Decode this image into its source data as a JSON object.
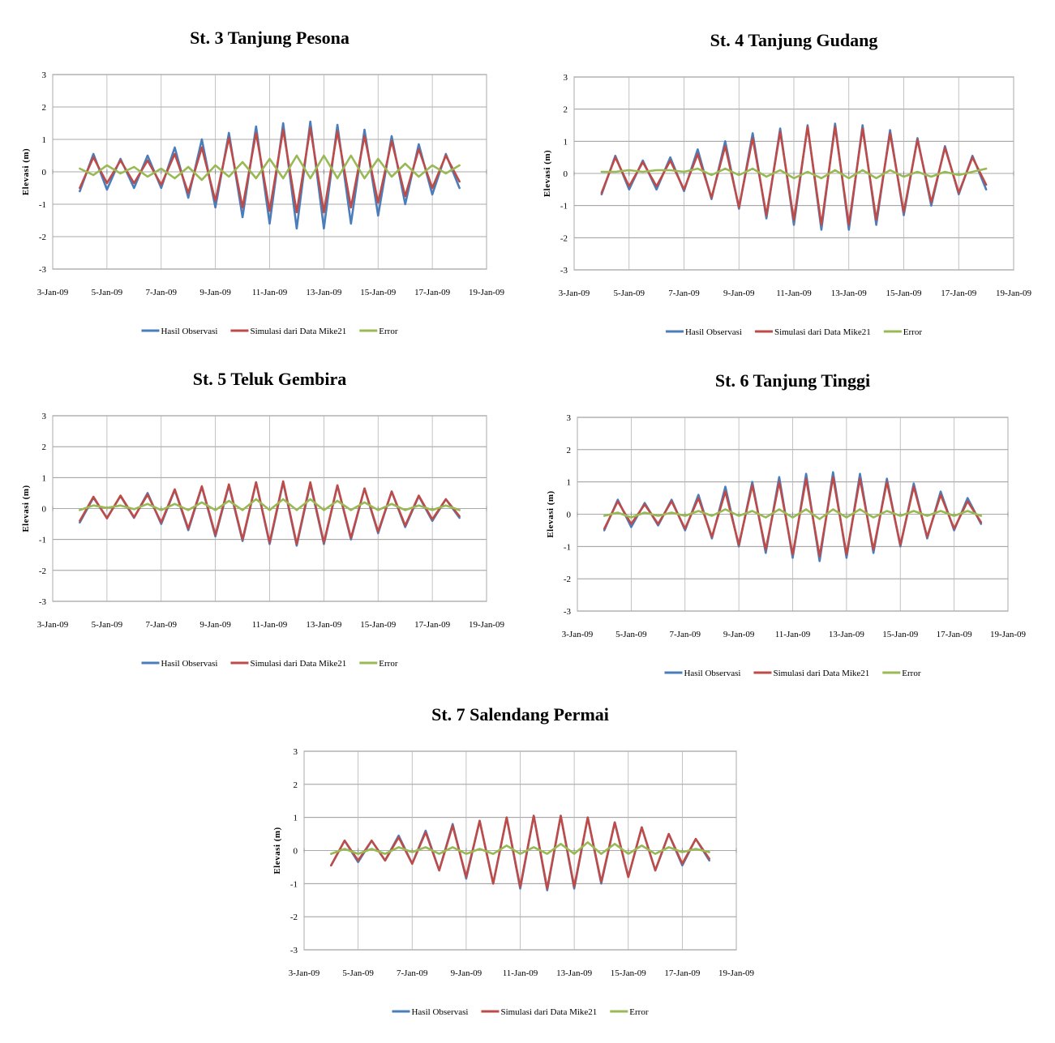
{
  "chart_data": [
    {
      "type": "line",
      "title": "St. 3 Tanjung Pesona",
      "y_label": "Elevasi (m)",
      "grid": true,
      "legend": "bottom",
      "x": [
        "2009-01-04T00:00",
        "2009-01-04T12:00",
        "2009-01-05T00:00",
        "2009-01-05T12:00",
        "2009-01-06T00:00",
        "2009-01-06T12:00",
        "2009-01-07T00:00",
        "2009-01-07T12:00",
        "2009-01-08T00:00",
        "2009-01-08T12:00",
        "2009-01-09T00:00",
        "2009-01-09T12:00",
        "2009-01-10T00:00",
        "2009-01-10T12:00",
        "2009-01-11T00:00",
        "2009-01-11T12:00",
        "2009-01-12T00:00",
        "2009-01-12T12:00",
        "2009-01-13T00:00",
        "2009-01-13T12:00",
        "2009-01-14T00:00",
        "2009-01-14T12:00",
        "2009-01-15T00:00",
        "2009-01-15T12:00",
        "2009-01-16T00:00",
        "2009-01-16T12:00",
        "2009-01-17T00:00",
        "2009-01-17T12:00",
        "2009-01-18T00:00"
      ],
      "xlim": [
        "2009-01-03",
        "2009-01-19"
      ],
      "xticks": [
        {
          "value": "2009-01-03",
          "label": "3-Jan-09"
        },
        {
          "value": "2009-01-05",
          "label": "5-Jan-09"
        },
        {
          "value": "2009-01-07",
          "label": "7-Jan-09"
        },
        {
          "value": "2009-01-09",
          "label": "9-Jan-09"
        },
        {
          "value": "2009-01-11",
          "label": "11-Jan-09"
        },
        {
          "value": "2009-01-13",
          "label": "13-Jan-09"
        },
        {
          "value": "2009-01-15",
          "label": "15-Jan-09"
        },
        {
          "value": "2009-01-17",
          "label": "17-Jan-09"
        },
        {
          "value": "2009-01-19",
          "label": "19-Jan-09"
        }
      ],
      "ylim": [
        -3,
        3
      ],
      "yticks": [
        -3,
        -2,
        -1,
        0,
        1,
        2,
        3
      ],
      "series": [
        {
          "name": "Hasil Observasi",
          "color": "#4a7ebb",
          "values": [
            -0.6,
            0.55,
            -0.55,
            0.4,
            -0.5,
            0.5,
            -0.5,
            0.75,
            -0.8,
            1.0,
            -1.1,
            1.2,
            -1.4,
            1.4,
            -1.6,
            1.5,
            -1.75,
            1.55,
            -1.75,
            1.45,
            -1.6,
            1.3,
            -1.35,
            1.1,
            -1.0,
            0.85,
            -0.7,
            0.55,
            -0.5
          ]
        },
        {
          "name": "Simulasi dari Data Mike21",
          "color": "#be4b48",
          "values": [
            -0.5,
            0.45,
            -0.35,
            0.35,
            -0.35,
            0.35,
            -0.4,
            0.55,
            -0.65,
            0.75,
            -0.9,
            1.05,
            -1.1,
            1.2,
            -1.2,
            1.3,
            -1.25,
            1.35,
            -1.25,
            1.25,
            -1.1,
            1.1,
            -0.95,
            0.95,
            -0.75,
            0.7,
            -0.5,
            0.5,
            -0.3
          ]
        },
        {
          "name": "Error",
          "color": "#98b954",
          "values": [
            0.1,
            -0.1,
            0.2,
            -0.05,
            0.15,
            -0.15,
            0.1,
            -0.2,
            0.15,
            -0.25,
            0.2,
            -0.15,
            0.3,
            -0.2,
            0.4,
            -0.2,
            0.5,
            -0.2,
            0.5,
            -0.2,
            0.5,
            -0.2,
            0.4,
            -0.15,
            0.25,
            -0.15,
            0.2,
            -0.05,
            0.2
          ]
        }
      ]
    },
    {
      "type": "line",
      "title": "St. 4 Tanjung Gudang",
      "y_label": "Elevasi (m)",
      "grid": true,
      "legend": "bottom",
      "x": [
        "2009-01-04T00:00",
        "2009-01-04T12:00",
        "2009-01-05T00:00",
        "2009-01-05T12:00",
        "2009-01-06T00:00",
        "2009-01-06T12:00",
        "2009-01-07T00:00",
        "2009-01-07T12:00",
        "2009-01-08T00:00",
        "2009-01-08T12:00",
        "2009-01-09T00:00",
        "2009-01-09T12:00",
        "2009-01-10T00:00",
        "2009-01-10T12:00",
        "2009-01-11T00:00",
        "2009-01-11T12:00",
        "2009-01-12T00:00",
        "2009-01-12T12:00",
        "2009-01-13T00:00",
        "2009-01-13T12:00",
        "2009-01-14T00:00",
        "2009-01-14T12:00",
        "2009-01-15T00:00",
        "2009-01-15T12:00",
        "2009-01-16T00:00",
        "2009-01-16T12:00",
        "2009-01-17T00:00",
        "2009-01-17T12:00",
        "2009-01-18T00:00"
      ],
      "xlim": [
        "2009-01-03",
        "2009-01-19"
      ],
      "xticks": [
        {
          "value": "2009-01-03",
          "label": "3-Jan-09"
        },
        {
          "value": "2009-01-05",
          "label": "5-Jan-09"
        },
        {
          "value": "2009-01-07",
          "label": "7-Jan-09"
        },
        {
          "value": "2009-01-09",
          "label": "9-Jan-09"
        },
        {
          "value": "2009-01-11",
          "label": "11-Jan-09"
        },
        {
          "value": "2009-01-13",
          "label": "13-Jan-09"
        },
        {
          "value": "2009-01-15",
          "label": "15-Jan-09"
        },
        {
          "value": "2009-01-17",
          "label": "17-Jan-09"
        },
        {
          "value": "2009-01-19",
          "label": "19-Jan-09"
        }
      ],
      "ylim": [
        -3,
        3
      ],
      "yticks": [
        -3,
        -2,
        -1,
        0,
        1,
        2,
        3
      ],
      "series": [
        {
          "name": "Hasil Observasi",
          "color": "#4a7ebb",
          "values": [
            -0.65,
            0.55,
            -0.5,
            0.4,
            -0.5,
            0.5,
            -0.55,
            0.75,
            -0.8,
            1.0,
            -1.1,
            1.25,
            -1.4,
            1.4,
            -1.6,
            1.5,
            -1.75,
            1.55,
            -1.75,
            1.5,
            -1.6,
            1.35,
            -1.3,
            1.1,
            -1.0,
            0.85,
            -0.65,
            0.55,
            -0.5
          ]
        },
        {
          "name": "Simulasi dari Data Mike21",
          "color": "#be4b48",
          "values": [
            -0.6,
            0.5,
            -0.4,
            0.35,
            -0.4,
            0.4,
            -0.5,
            0.6,
            -0.75,
            0.85,
            -1.05,
            1.1,
            -1.3,
            1.3,
            -1.45,
            1.45,
            -1.6,
            1.45,
            -1.6,
            1.4,
            -1.45,
            1.25,
            -1.2,
            1.05,
            -0.9,
            0.8,
            -0.6,
            0.5,
            -0.35
          ]
        },
        {
          "name": "Error",
          "color": "#98b954",
          "values": [
            0.05,
            0.05,
            0.1,
            0.05,
            0.1,
            0.1,
            0.05,
            0.15,
            -0.05,
            0.15,
            -0.05,
            0.15,
            -0.1,
            0.1,
            -0.15,
            0.05,
            -0.15,
            0.1,
            -0.15,
            0.1,
            -0.15,
            0.1,
            -0.1,
            0.05,
            -0.1,
            0.05,
            -0.05,
            0.05,
            0.15
          ]
        }
      ]
    },
    {
      "type": "line",
      "title": "St. 5 Teluk Gembira",
      "y_label": "Elevasi (m)",
      "grid": true,
      "legend": "bottom",
      "x": [
        "2009-01-04T00:00",
        "2009-01-04T12:00",
        "2009-01-05T00:00",
        "2009-01-05T12:00",
        "2009-01-06T00:00",
        "2009-01-06T12:00",
        "2009-01-07T00:00",
        "2009-01-07T12:00",
        "2009-01-08T00:00",
        "2009-01-08T12:00",
        "2009-01-09T00:00",
        "2009-01-09T12:00",
        "2009-01-10T00:00",
        "2009-01-10T12:00",
        "2009-01-11T00:00",
        "2009-01-11T12:00",
        "2009-01-12T00:00",
        "2009-01-12T12:00",
        "2009-01-13T00:00",
        "2009-01-13T12:00",
        "2009-01-14T00:00",
        "2009-01-14T12:00",
        "2009-01-15T00:00",
        "2009-01-15T12:00",
        "2009-01-16T00:00",
        "2009-01-16T12:00",
        "2009-01-17T00:00",
        "2009-01-17T12:00",
        "2009-01-18T00:00"
      ],
      "xlim": [
        "2009-01-03",
        "2009-01-19"
      ],
      "xticks": [
        {
          "value": "2009-01-03",
          "label": "3-Jan-09"
        },
        {
          "value": "2009-01-05",
          "label": "5-Jan-09"
        },
        {
          "value": "2009-01-07",
          "label": "7-Jan-09"
        },
        {
          "value": "2009-01-09",
          "label": "9-Jan-09"
        },
        {
          "value": "2009-01-11",
          "label": "11-Jan-09"
        },
        {
          "value": "2009-01-13",
          "label": "13-Jan-09"
        },
        {
          "value": "2009-01-15",
          "label": "15-Jan-09"
        },
        {
          "value": "2009-01-17",
          "label": "17-Jan-09"
        },
        {
          "value": "2009-01-19",
          "label": "19-Jan-09"
        }
      ],
      "ylim": [
        -3,
        3
      ],
      "yticks": [
        -3,
        -2,
        -1,
        0,
        1,
        2,
        3
      ],
      "series": [
        {
          "name": "Hasil Observasi",
          "color": "#4a7ebb",
          "values": [
            -0.45,
            0.35,
            -0.3,
            0.4,
            -0.3,
            0.5,
            -0.5,
            0.6,
            -0.7,
            0.7,
            -0.9,
            0.75,
            -1.05,
            0.85,
            -1.15,
            0.85,
            -1.2,
            0.8,
            -1.15,
            0.75,
            -1.0,
            0.65,
            -0.8,
            0.55,
            -0.6,
            0.4,
            -0.4,
            0.3,
            -0.3
          ]
        },
        {
          "name": "Simulasi dari Data Mike21",
          "color": "#be4b48",
          "values": [
            -0.4,
            0.38,
            -0.32,
            0.42,
            -0.28,
            0.45,
            -0.45,
            0.62,
            -0.65,
            0.72,
            -0.85,
            0.78,
            -1.0,
            0.85,
            -1.1,
            0.88,
            -1.15,
            0.85,
            -1.1,
            0.75,
            -0.95,
            0.65,
            -0.75,
            0.55,
            -0.55,
            0.42,
            -0.35,
            0.3,
            -0.25
          ]
        },
        {
          "name": "Error",
          "color": "#98b954",
          "values": [
            -0.05,
            0.1,
            0.02,
            0.1,
            -0.02,
            0.15,
            -0.05,
            0.15,
            -0.05,
            0.2,
            -0.05,
            0.25,
            -0.05,
            0.3,
            -0.05,
            0.3,
            -0.05,
            0.3,
            -0.05,
            0.25,
            -0.05,
            0.2,
            -0.05,
            0.15,
            -0.05,
            0.1,
            -0.05,
            0.1,
            -0.05
          ]
        }
      ]
    },
    {
      "type": "line",
      "title": "St. 6 Tanjung Tinggi",
      "y_label": "Elevasi (m)",
      "grid": true,
      "legend": "bottom",
      "x": [
        "2009-01-04T00:00",
        "2009-01-04T12:00",
        "2009-01-05T00:00",
        "2009-01-05T12:00",
        "2009-01-06T00:00",
        "2009-01-06T12:00",
        "2009-01-07T00:00",
        "2009-01-07T12:00",
        "2009-01-08T00:00",
        "2009-01-08T12:00",
        "2009-01-09T00:00",
        "2009-01-09T12:00",
        "2009-01-10T00:00",
        "2009-01-10T12:00",
        "2009-01-11T00:00",
        "2009-01-11T12:00",
        "2009-01-12T00:00",
        "2009-01-12T12:00",
        "2009-01-13T00:00",
        "2009-01-13T12:00",
        "2009-01-14T00:00",
        "2009-01-14T12:00",
        "2009-01-15T00:00",
        "2009-01-15T12:00",
        "2009-01-16T00:00",
        "2009-01-16T12:00",
        "2009-01-17T00:00",
        "2009-01-17T12:00",
        "2009-01-18T00:00"
      ],
      "xlim": [
        "2009-01-03",
        "2009-01-19"
      ],
      "xticks": [
        {
          "value": "2009-01-03",
          "label": "3-Jan-09"
        },
        {
          "value": "2009-01-05",
          "label": "5-Jan-09"
        },
        {
          "value": "2009-01-07",
          "label": "7-Jan-09"
        },
        {
          "value": "2009-01-09",
          "label": "9-Jan-09"
        },
        {
          "value": "2009-01-11",
          "label": "11-Jan-09"
        },
        {
          "value": "2009-01-13",
          "label": "13-Jan-09"
        },
        {
          "value": "2009-01-15",
          "label": "15-Jan-09"
        },
        {
          "value": "2009-01-17",
          "label": "17-Jan-09"
        },
        {
          "value": "2009-01-19",
          "label": "19-Jan-09"
        }
      ],
      "ylim": [
        -3,
        3
      ],
      "yticks": [
        -3,
        -2,
        -1,
        0,
        1,
        2,
        3
      ],
      "series": [
        {
          "name": "Hasil Observasi",
          "color": "#4a7ebb",
          "values": [
            -0.5,
            0.45,
            -0.4,
            0.35,
            -0.35,
            0.45,
            -0.5,
            0.6,
            -0.75,
            0.85,
            -1.0,
            1.0,
            -1.2,
            1.15,
            -1.35,
            1.25,
            -1.45,
            1.3,
            -1.35,
            1.25,
            -1.2,
            1.1,
            -1.0,
            0.95,
            -0.75,
            0.7,
            -0.5,
            0.5,
            -0.3
          ]
        },
        {
          "name": "Simulasi dari Data Mike21",
          "color": "#be4b48",
          "values": [
            -0.45,
            0.4,
            -0.3,
            0.3,
            -0.3,
            0.4,
            -0.45,
            0.5,
            -0.7,
            0.7,
            -0.95,
            0.9,
            -1.1,
            1.0,
            -1.25,
            1.1,
            -1.3,
            1.15,
            -1.25,
            1.1,
            -1.1,
            1.0,
            -0.95,
            0.85,
            -0.7,
            0.6,
            -0.45,
            0.4,
            -0.25
          ]
        },
        {
          "name": "Error",
          "color": "#98b954",
          "values": [
            -0.05,
            0.05,
            -0.1,
            0.05,
            -0.05,
            0.05,
            -0.05,
            0.1,
            -0.05,
            0.15,
            -0.05,
            0.1,
            -0.1,
            0.15,
            -0.1,
            0.15,
            -0.15,
            0.15,
            -0.1,
            0.15,
            -0.1,
            0.1,
            -0.05,
            0.1,
            -0.05,
            0.1,
            -0.05,
            0.1,
            -0.05
          ]
        }
      ]
    },
    {
      "type": "line",
      "title": "St. 7 Salendang Permai",
      "y_label": "Elevasi (m)",
      "grid": true,
      "legend": "bottom",
      "x": [
        "2009-01-04T00:00",
        "2009-01-04T12:00",
        "2009-01-05T00:00",
        "2009-01-05T12:00",
        "2009-01-06T00:00",
        "2009-01-06T12:00",
        "2009-01-07T00:00",
        "2009-01-07T12:00",
        "2009-01-08T00:00",
        "2009-01-08T12:00",
        "2009-01-09T00:00",
        "2009-01-09T12:00",
        "2009-01-10T00:00",
        "2009-01-10T12:00",
        "2009-01-11T00:00",
        "2009-01-11T12:00",
        "2009-01-12T00:00",
        "2009-01-12T12:00",
        "2009-01-13T00:00",
        "2009-01-13T12:00",
        "2009-01-14T00:00",
        "2009-01-14T12:00",
        "2009-01-15T00:00",
        "2009-01-15T12:00",
        "2009-01-16T00:00",
        "2009-01-16T12:00",
        "2009-01-17T00:00",
        "2009-01-17T12:00",
        "2009-01-18T00:00"
      ],
      "xlim": [
        "2009-01-03",
        "2009-01-19"
      ],
      "xticks": [
        {
          "value": "2009-01-03",
          "label": "3-Jan-09"
        },
        {
          "value": "2009-01-05",
          "label": "5-Jan-09"
        },
        {
          "value": "2009-01-07",
          "label": "7-Jan-09"
        },
        {
          "value": "2009-01-09",
          "label": "9-Jan-09"
        },
        {
          "value": "2009-01-11",
          "label": "11-Jan-09"
        },
        {
          "value": "2009-01-13",
          "label": "13-Jan-09"
        },
        {
          "value": "2009-01-15",
          "label": "15-Jan-09"
        },
        {
          "value": "2009-01-17",
          "label": "17-Jan-09"
        },
        {
          "value": "2009-01-19",
          "label": "19-Jan-09"
        }
      ],
      "ylim": [
        -3,
        3
      ],
      "yticks": [
        -3,
        -2,
        -1,
        0,
        1,
        2,
        3
      ],
      "series": [
        {
          "name": "Hasil Observasi",
          "color": "#4a7ebb",
          "values": [
            -0.45,
            0.3,
            -0.35,
            0.3,
            -0.3,
            0.45,
            -0.4,
            0.6,
            -0.6,
            0.8,
            -0.85,
            0.9,
            -1.0,
            1.0,
            -1.15,
            1.05,
            -1.2,
            1.05,
            -1.15,
            1.0,
            -1.0,
            0.85,
            -0.8,
            0.7,
            -0.6,
            0.5,
            -0.45,
            0.35,
            -0.3
          ]
        },
        {
          "name": "Simulasi dari Data Mike21",
          "color": "#be4b48",
          "values": [
            -0.45,
            0.3,
            -0.3,
            0.3,
            -0.3,
            0.4,
            -0.4,
            0.55,
            -0.6,
            0.75,
            -0.8,
            0.9,
            -1.0,
            1.0,
            -1.1,
            1.05,
            -1.15,
            1.05,
            -1.1,
            1.0,
            -0.95,
            0.85,
            -0.8,
            0.7,
            -0.6,
            0.5,
            -0.4,
            0.35,
            -0.25
          ]
        },
        {
          "name": "Error",
          "color": "#98b954",
          "values": [
            -0.1,
            0.05,
            -0.1,
            0.05,
            -0.1,
            0.1,
            -0.05,
            0.1,
            -0.1,
            0.1,
            -0.1,
            0.05,
            -0.1,
            0.15,
            -0.1,
            0.1,
            -0.1,
            0.2,
            -0.1,
            0.25,
            -0.1,
            0.2,
            -0.1,
            0.15,
            -0.1,
            0.1,
            -0.05,
            0.05,
            -0.05
          ]
        }
      ]
    }
  ]
}
